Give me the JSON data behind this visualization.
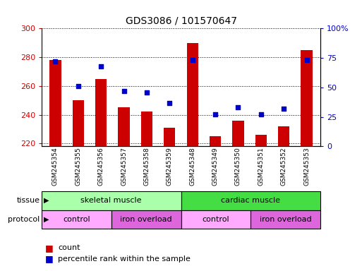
{
  "title": "GDS3086 / 101570647",
  "samples": [
    "GSM245354",
    "GSM245355",
    "GSM245356",
    "GSM245357",
    "GSM245358",
    "GSM245359",
    "GSM245348",
    "GSM245349",
    "GSM245350",
    "GSM245351",
    "GSM245352",
    "GSM245353"
  ],
  "bar_values": [
    278,
    250,
    265,
    245,
    242,
    231,
    290,
    225,
    236,
    226,
    232,
    285
  ],
  "dot_values": [
    72,
    51,
    68,
    47,
    46,
    37,
    73,
    27,
    33,
    27,
    32,
    73
  ],
  "ylim_left": [
    218,
    300
  ],
  "ylim_right": [
    0,
    100
  ],
  "yticks_left": [
    220,
    240,
    260,
    280,
    300
  ],
  "yticks_right": [
    0,
    25,
    50,
    75,
    100
  ],
  "bar_color": "#cc0000",
  "dot_color": "#0000cc",
  "tissue_labels": [
    {
      "text": "skeletal muscle",
      "start": 0,
      "end": 6,
      "color": "#aaffaa"
    },
    {
      "text": "cardiac muscle",
      "start": 6,
      "end": 12,
      "color": "#44dd44"
    }
  ],
  "protocol_labels": [
    {
      "text": "control",
      "start": 0,
      "end": 3,
      "color": "#ffaaff"
    },
    {
      "text": "iron overload",
      "start": 3,
      "end": 6,
      "color": "#dd66dd"
    },
    {
      "text": "control",
      "start": 6,
      "end": 9,
      "color": "#ffaaff"
    },
    {
      "text": "iron overload",
      "start": 9,
      "end": 12,
      "color": "#dd66dd"
    }
  ],
  "legend_count_color": "#cc0000",
  "legend_dot_color": "#0000cc",
  "tissue_label_x": "tissue",
  "protocol_label_x": "protocol",
  "background_color": "#ffffff",
  "plot_bg": "#ffffff",
  "bar_width": 0.5
}
